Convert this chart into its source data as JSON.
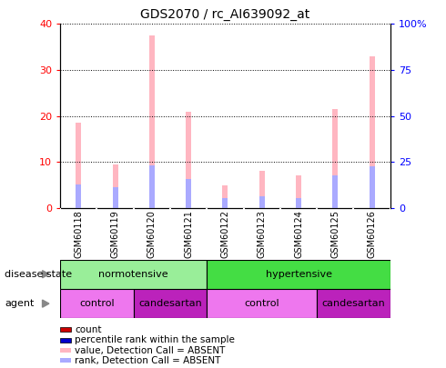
{
  "title": "GDS2070 / rc_AI639092_at",
  "samples": [
    "GSM60118",
    "GSM60119",
    "GSM60120",
    "GSM60121",
    "GSM60122",
    "GSM60123",
    "GSM60124",
    "GSM60125",
    "GSM60126"
  ],
  "value_absent": [
    18.5,
    9.5,
    37.5,
    21.0,
    5.0,
    8.0,
    7.0,
    21.5,
    33.0
  ],
  "rank_absent": [
    5.2,
    4.5,
    9.2,
    6.3,
    2.2,
    2.5,
    2.2,
    7.0,
    9.0
  ],
  "ylim_left": [
    0,
    40
  ],
  "ylim_right": [
    0,
    100
  ],
  "yticks_left": [
    0,
    10,
    20,
    30,
    40
  ],
  "yticks_right": [
    0,
    25,
    50,
    75,
    100
  ],
  "yticklabels_right": [
    "0",
    "25",
    "50",
    "75",
    "100%"
  ],
  "disease_state_groups": [
    {
      "label": "normotensive",
      "start": 0,
      "end": 4,
      "color": "#99EE99"
    },
    {
      "label": "hypertensive",
      "start": 4,
      "end": 9,
      "color": "#44DD44"
    }
  ],
  "agent_groups": [
    {
      "label": "control",
      "start": 0,
      "end": 2,
      "color": "#EE77EE"
    },
    {
      "label": "candesartan",
      "start": 2,
      "end": 4,
      "color": "#BB22BB"
    },
    {
      "label": "control",
      "start": 4,
      "end": 7,
      "color": "#EE77EE"
    },
    {
      "label": "candesartan",
      "start": 7,
      "end": 9,
      "color": "#BB22BB"
    }
  ],
  "bar_width": 0.15,
  "color_value_absent": "#FFB6C1",
  "color_rank_absent": "#AAAAFF",
  "color_count": "#CC0000",
  "color_percentile": "#0000CC",
  "background_color": "#FFFFFF",
  "label_disease": "disease state",
  "label_agent": "agent",
  "legend_items": [
    {
      "label": "count",
      "color": "#CC0000"
    },
    {
      "label": "percentile rank within the sample",
      "color": "#0000CC"
    },
    {
      "label": "value, Detection Call = ABSENT",
      "color": "#FFB6C1"
    },
    {
      "label": "rank, Detection Call = ABSENT",
      "color": "#AAAAFF"
    }
  ]
}
